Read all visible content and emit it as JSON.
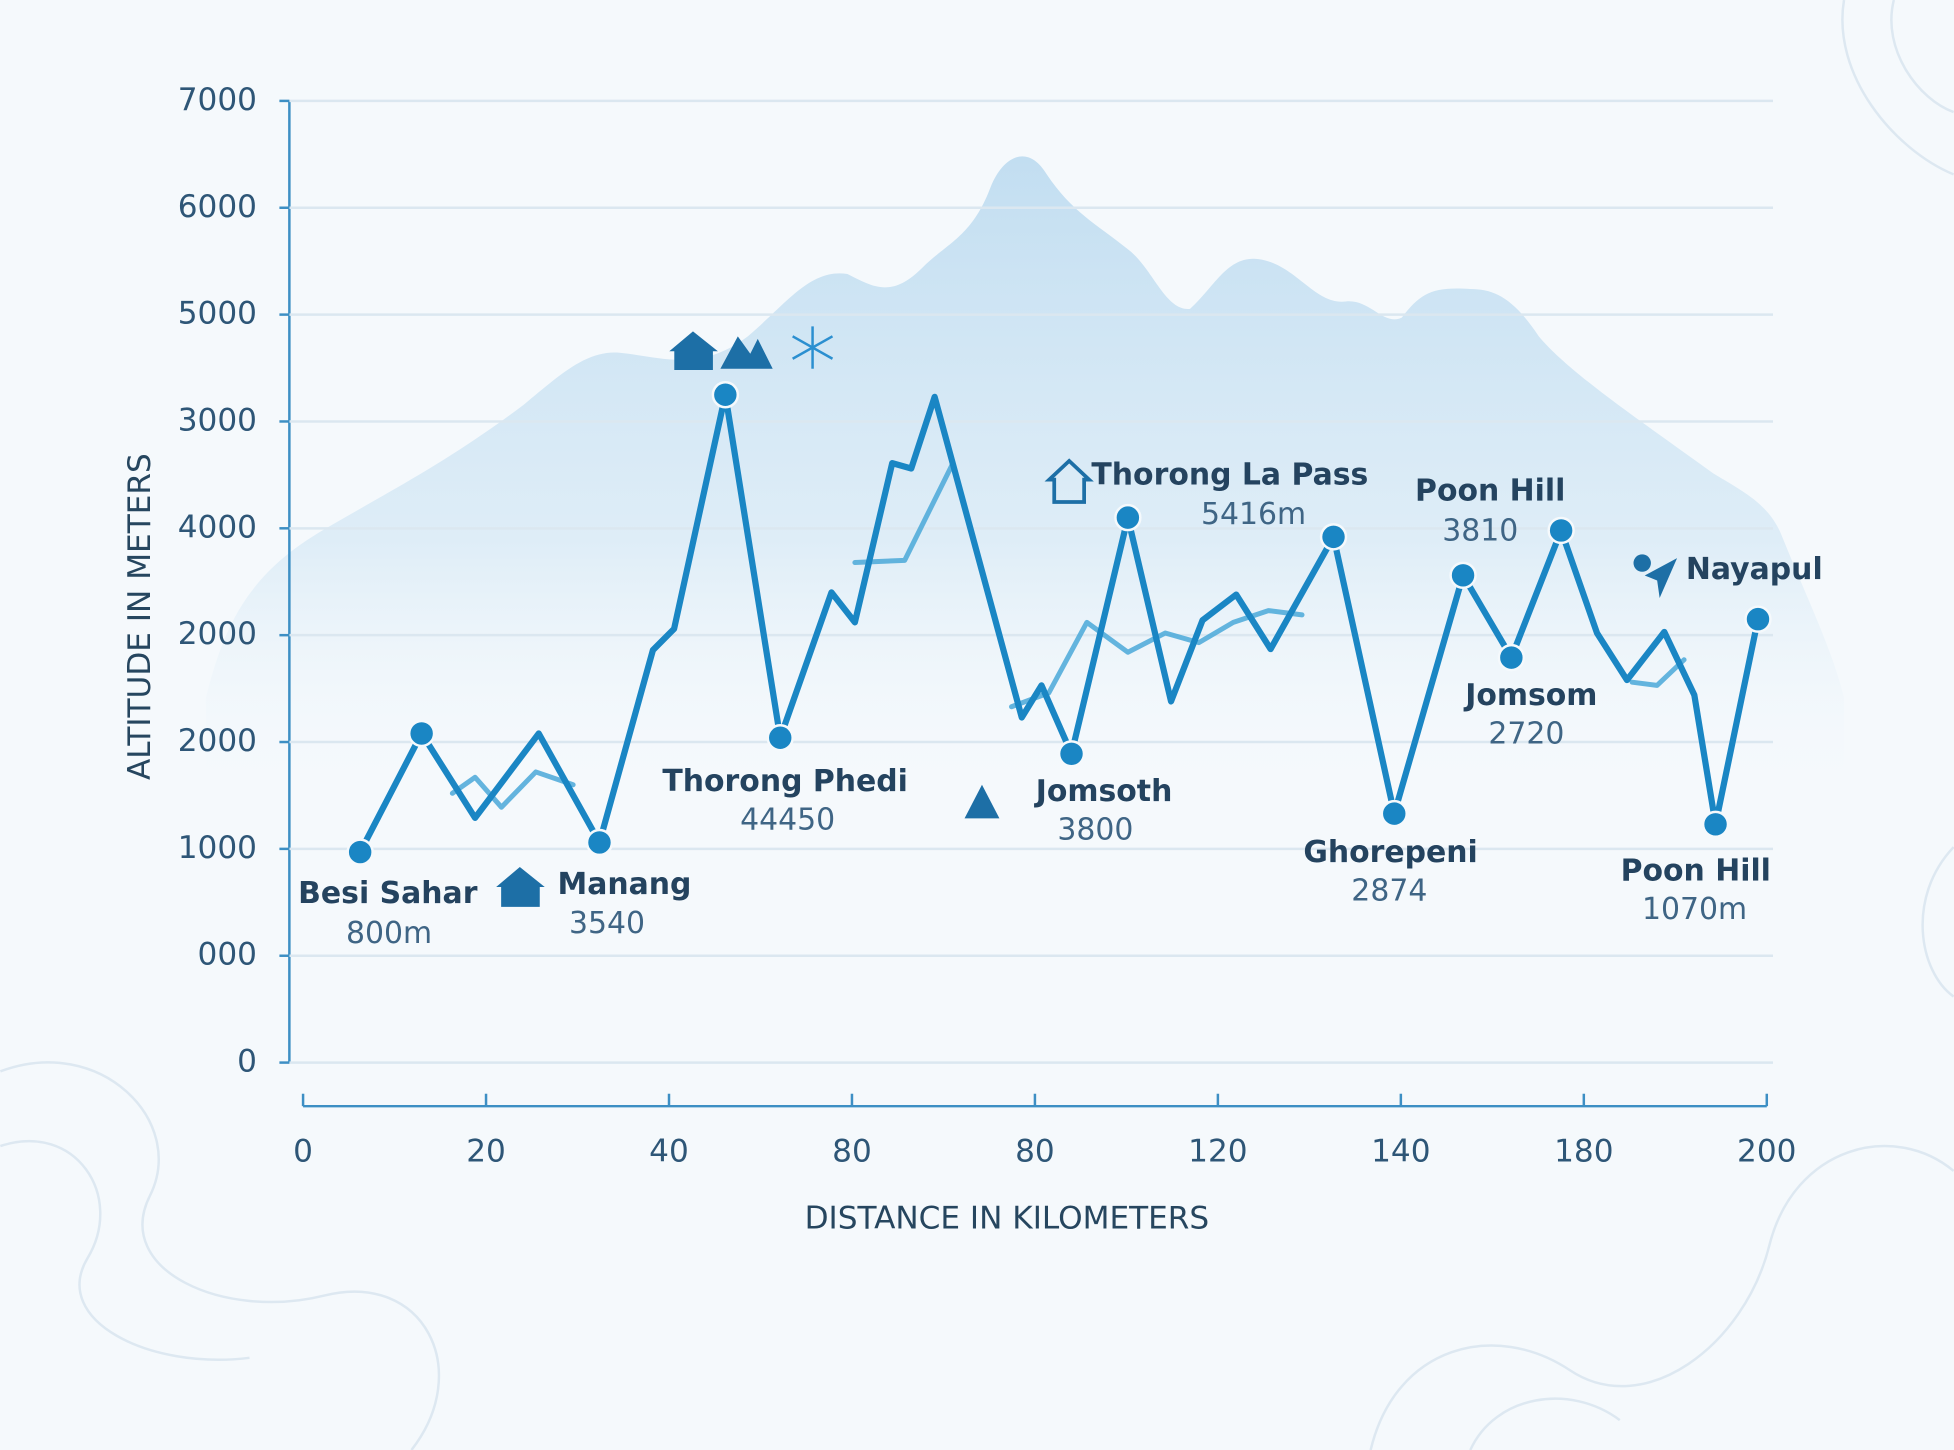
{
  "chart_data": {
    "type": "line",
    "xlabel": "DISTANCE IN KILOMETERS",
    "ylabel": "ALTITUDE IN METERS",
    "xlim": [
      0,
      200
    ],
    "xticks": [
      0,
      {
        "value": 25,
        "label": "20"
      },
      {
        "value": 50,
        "label": "40"
      },
      {
        "value": 75,
        "label": "80"
      },
      {
        "value": 100,
        "label": "80"
      },
      {
        "value": 125,
        "label": "120"
      },
      {
        "value": 150,
        "label": "140"
      },
      {
        "value": 175,
        "label": "180"
      },
      200
    ],
    "ylim": [
      0,
      9000
    ],
    "yticks": [
      0,
      {
        "value": 1000,
        "label": "000"
      },
      {
        "value": 2000,
        "label": "1000"
      },
      {
        "value": 3000,
        "label": "2000"
      },
      {
        "value": 4000,
        "label": "2000"
      },
      {
        "value": 5000,
        "label": "4000"
      },
      {
        "value": 6000,
        "label": "3000"
      },
      {
        "value": 7000,
        "label": "5000"
      },
      {
        "value": 8000,
        "label": "6000"
      },
      {
        "value": 9000,
        "label": "7000"
      }
    ],
    "grid": true,
    "series": [
      {
        "color": "#1a86c4",
        "x": [
          7.8,
          16.2,
          23.5,
          32.2,
          40.5,
          47.8,
          50.7,
          57.7,
          65.2,
          72.2,
          75.4,
          80.5,
          83.1,
          86.3,
          98.2,
          100.9,
          105.0,
          112.7,
          118.6,
          122.9,
          127.5,
          132.2,
          140.8,
          149.1,
          158.5,
          165.1,
          171.9,
          176.8,
          180.9,
          186.0,
          190.1,
          193.0,
          198.8
        ],
        "values": [
          1970,
          3080,
          2290,
          3080,
          2060,
          3860,
          4060,
          6250,
          3040,
          4400,
          4120,
          5610,
          5560,
          6230,
          3230,
          3530,
          2890,
          5100,
          3380,
          4140,
          4380,
          3870,
          4920,
          2330,
          4560,
          3790,
          4980,
          4020,
          3580,
          4030,
          3440,
          2230,
          4150
        ]
      },
      {
        "color": "#4aa8d8",
        "x": [
          20.4,
          23.5,
          27.1,
          31.8,
          36.9,
          null,
          75.4,
          82.2,
          88.8,
          null,
          96.8,
          101.9,
          107.1,
          112.7,
          117.8,
          122.4,
          127.1,
          131.9,
          136.5,
          null,
          181.6,
          185.0,
          188.7
        ],
        "values": [
          2520,
          2670,
          2390,
          2720,
          2600,
          null,
          4680,
          4700,
          5610,
          null,
          3330,
          3460,
          4120,
          3840,
          4020,
          3930,
          4120,
          4230,
          4190,
          null,
          3560,
          3530,
          3770
        ]
      },
      {
        "color": "#1a86c4",
        "line": false,
        "marker": "circle",
        "x": [
          7.8,
          16.2,
          40.5,
          57.7,
          65.2,
          105.0,
          112.7,
          140.8,
          149.1,
          158.5,
          165.1,
          171.9,
          193.0,
          198.8
        ],
        "values": [
          1970,
          3080,
          2060,
          6250,
          3040,
          2890,
          5100,
          4920,
          2330,
          4560,
          3790,
          4980,
          2230,
          4150
        ]
      }
    ],
    "annotations": [
      {
        "text": "Besi Sahar",
        "sub": "800m"
      },
      {
        "text": "Manang",
        "sub": "3540"
      },
      {
        "text": "Thorong Phedi",
        "sub": "44450"
      },
      {
        "text": "Jomsoth",
        "sub": "3800"
      },
      {
        "text": "Thorong La Pass",
        "sub": "5416m"
      },
      {
        "text": "Poon Hill",
        "sub": "3810"
      },
      {
        "text": "Jomsom",
        "sub": "2720"
      },
      {
        "text": "Ghorepeni",
        "sub": "2874"
      },
      {
        "text": "Nayapul"
      },
      {
        "text": "Poon Hill",
        "sub": "1070m"
      }
    ]
  }
}
